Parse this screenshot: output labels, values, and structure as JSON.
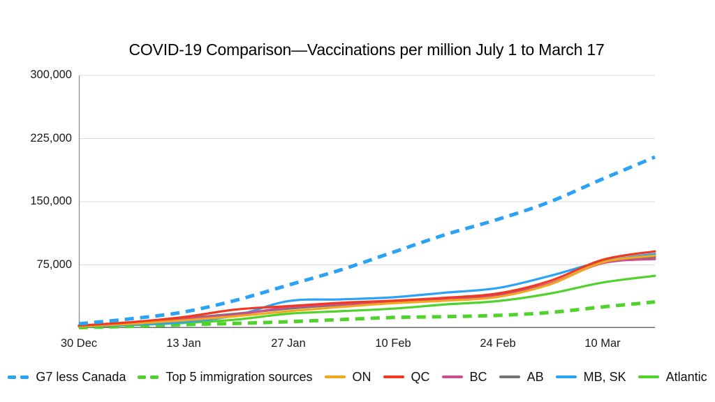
{
  "title": "COVID-19 Comparison—Vaccinations per million July 1 to March 17",
  "chart_data": {
    "type": "line",
    "title": "COVID-19 Comparison—Vaccinations per million July 1 to March 17",
    "xlabel": "",
    "ylabel": "",
    "ylim": [
      0,
      300000
    ],
    "grid": "horizontal",
    "legend_position": "bottom",
    "x_days": [
      0,
      7,
      14,
      21,
      28,
      35,
      42,
      49,
      56,
      63,
      70,
      77
    ],
    "x_tick_days": [
      0,
      14,
      28,
      42,
      56,
      70
    ],
    "x_tick_labels": [
      "30 Dec",
      "13 Jan",
      "27 Jan",
      "10 Feb",
      "24 Feb",
      "10 Mar"
    ],
    "y_ticks": [
      75000,
      150000,
      225000,
      300000
    ],
    "y_tick_labels": [
      "75,000",
      "150,000",
      "225,000",
      "300,000"
    ],
    "series": [
      {
        "name": "G7 less Canada",
        "style": "dashed",
        "color": "#2aa2f5",
        "values": [
          5000,
          11000,
          19000,
          33000,
          51000,
          69000,
          90000,
          111000,
          129000,
          150000,
          177000,
          203000
        ]
      },
      {
        "name": "Top 5 immigration sources",
        "style": "dashed",
        "color": "#4fd32b",
        "values": [
          500,
          2000,
          4000,
          5500,
          7500,
          10000,
          12500,
          13500,
          15000,
          18500,
          25000,
          31000
        ]
      },
      {
        "name": "ON",
        "style": "solid",
        "color": "#f3a71b",
        "values": [
          2000,
          5000,
          9000,
          14000,
          20000,
          25000,
          29500,
          32500,
          37000,
          52000,
          78000,
          86000
        ]
      },
      {
        "name": "QC",
        "style": "solid",
        "color": "#f0391f",
        "values": [
          3000,
          7000,
          13000,
          22000,
          26000,
          30000,
          32500,
          36000,
          41000,
          56000,
          81000,
          91000
        ]
      },
      {
        "name": "BC",
        "style": "solid",
        "color": "#c9508f",
        "values": [
          2500,
          6000,
          11000,
          16000,
          24500,
          28000,
          31000,
          34000,
          39000,
          53000,
          77000,
          82000
        ]
      },
      {
        "name": "AB",
        "style": "solid",
        "color": "#737373",
        "values": [
          2500,
          6000,
          11500,
          17000,
          23000,
          27500,
          30500,
          33500,
          38000,
          52000,
          78000,
          84500
        ]
      },
      {
        "name": "MB, SK",
        "style": "solid",
        "color": "#2aa2f5",
        "values": [
          2000,
          4000,
          7000,
          15000,
          32000,
          34000,
          36500,
          42000,
          47500,
          62000,
          79000,
          88000
        ]
      },
      {
        "name": "Atlantic",
        "style": "solid",
        "color": "#4fd32b",
        "values": [
          1500,
          3500,
          6000,
          10000,
          17000,
          20000,
          23000,
          28000,
          32000,
          41000,
          54000,
          62000
        ]
      }
    ],
    "z_order": [
      "Top 5 immigration sources",
      "Atlantic",
      "MB, SK",
      "AB",
      "BC",
      "ON",
      "QC",
      "G7 less Canada"
    ],
    "axis_color": "#8c8c8c",
    "gridline_color": "#d9d9d9",
    "baseline_color": "#6e6e6e"
  }
}
